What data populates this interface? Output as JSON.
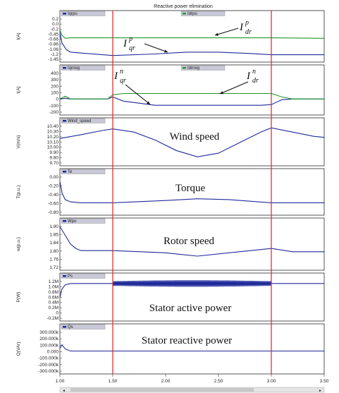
{
  "title": "Reactive power elimination",
  "scrollbar_arrow_left": "◄",
  "scrollbar_arrow_right": "►",
  "colors": {
    "blue": "#1f2a9a",
    "green": "#1d9a2e",
    "red": "#e23030",
    "frame": "#2a2a2a",
    "legendbg": "#c8c8d8"
  },
  "x_ticks": [
    "1.00",
    "1.50",
    "2.00",
    "2.50",
    "3.00",
    "3.50"
  ],
  "red_markers_x": [
    1.5,
    3.0
  ],
  "chart_data": [
    {
      "type": "line",
      "legend": [
        "Iqrpu",
        "Idrpu"
      ],
      "ylabel": "I(A)",
      "yticks": [
        "0.2",
        "0.0",
        "-0.2",
        "-0.45",
        "-0.66",
        "-0.86",
        "-1.06",
        "-1.2",
        "-1.45"
      ],
      "ylim": [
        -1.45,
        0.2
      ],
      "xlim": [
        1.0,
        3.5
      ],
      "series": [
        {
          "name": "Iqrpu",
          "color": "blue",
          "x": [
            1.0,
            1.02,
            1.06,
            1.1,
            1.5,
            1.9,
            2.2,
            2.5,
            2.8,
            3.0,
            3.1,
            3.5
          ],
          "y": [
            -0.4,
            -0.8,
            -1.05,
            -1.15,
            -1.28,
            -1.22,
            -1.15,
            -1.15,
            -1.2,
            -1.25,
            -1.25,
            -1.25
          ]
        },
        {
          "name": "Idrpu",
          "color": "green",
          "x": [
            1.0,
            1.02,
            1.05,
            1.1,
            1.5,
            2.0,
            2.5,
            3.0,
            3.5
          ],
          "y": [
            -0.3,
            -0.5,
            -0.62,
            -0.6,
            -0.6,
            -0.6,
            -0.6,
            -0.6,
            -0.62
          ]
        }
      ],
      "annotations": [
        {
          "base": "I",
          "sup": "p",
          "sub": "dr"
        },
        {
          "base": "I",
          "sup": "p",
          "sub": "qr"
        }
      ]
    },
    {
      "type": "line",
      "legend": [
        "Iqrneg",
        "Idrneg"
      ],
      "ylabel": "I(A)",
      "yticks": [
        "400",
        "300",
        "200",
        "100",
        "0",
        "-100",
        "-200"
      ],
      "ylim": [
        -200,
        400
      ],
      "xlim": [
        1.0,
        3.5
      ],
      "series": [
        {
          "name": "Iqrneg",
          "color": "blue",
          "x": [
            1.0,
            1.05,
            1.1,
            1.45,
            1.5,
            1.6,
            1.9,
            2.5,
            2.9,
            3.0,
            3.1,
            3.2,
            3.5
          ],
          "y": [
            0,
            10,
            0,
            0,
            30,
            -30,
            -90,
            -90,
            -90,
            -80,
            -10,
            0,
            0
          ]
        },
        {
          "name": "Idrneg",
          "color": "green",
          "x": [
            1.0,
            1.05,
            1.1,
            1.45,
            1.5,
            1.6,
            2.5,
            3.0,
            3.1,
            3.2,
            3.5
          ],
          "y": [
            0,
            40,
            0,
            0,
            60,
            80,
            80,
            80,
            30,
            0,
            0
          ]
        }
      ],
      "annotations": [
        {
          "base": "I",
          "sup": "n",
          "sub": "qr"
        },
        {
          "base": "I",
          "sup": "n",
          "sub": "dr"
        }
      ]
    },
    {
      "type": "line",
      "legend": [
        "Wind_speed"
      ],
      "ylabel": "V(m/s)",
      "label": "Wind speed",
      "yticks": [
        "10.40",
        "10.30",
        "10.20",
        "10.10",
        "10.00",
        "9.90",
        "9.80",
        "9.70"
      ],
      "ylim": [
        9.7,
        10.45
      ],
      "xlim": [
        1.0,
        3.5
      ],
      "series": [
        {
          "name": "Wind_speed",
          "color": "blue",
          "x": [
            1.0,
            1.2,
            1.4,
            1.5,
            1.7,
            1.9,
            2.1,
            2.3,
            2.5,
            2.7,
            2.9,
            3.0,
            3.2,
            3.4,
            3.5
          ],
          "y": [
            10.18,
            10.25,
            10.33,
            10.36,
            10.3,
            10.15,
            9.95,
            9.83,
            9.9,
            10.1,
            10.3,
            10.38,
            10.3,
            10.22,
            10.2
          ]
        }
      ]
    },
    {
      "type": "line",
      "legend": [
        "Te"
      ],
      "ylabel": "T(p.u.)",
      "label": "Torque",
      "yticks": [
        "0.00",
        "-0.20",
        "-0.40",
        "-0.60",
        "-0.80"
      ],
      "ylim": [
        -0.8,
        0.05
      ],
      "xlim": [
        1.0,
        3.5
      ],
      "series": [
        {
          "name": "Te",
          "color": "blue",
          "x": [
            1.0,
            1.02,
            1.05,
            1.1,
            1.2,
            1.5,
            2.0,
            2.3,
            2.6,
            3.0,
            3.5
          ],
          "y": [
            -0.1,
            -0.35,
            -0.5,
            -0.55,
            -0.57,
            -0.57,
            -0.52,
            -0.48,
            -0.5,
            -0.57,
            -0.57
          ]
        }
      ]
    },
    {
      "type": "line",
      "legend": [
        "Wpu"
      ],
      "ylabel": "w(p.u.)",
      "label": "Rotor speed",
      "yticks": [
        "1.90",
        "1.85",
        "1.84",
        "1.80",
        "1.76",
        "1.72"
      ],
      "ylim": [
        1.71,
        1.91
      ],
      "xlim": [
        1.0,
        3.5
      ],
      "series": [
        {
          "name": "Wpu",
          "color": "blue",
          "x": [
            1.0,
            1.05,
            1.1,
            1.15,
            1.2,
            1.5,
            2.0,
            2.3,
            2.6,
            3.0,
            3.2,
            3.5
          ],
          "y": [
            1.9,
            1.86,
            1.82,
            1.8,
            1.79,
            1.79,
            1.78,
            1.765,
            1.78,
            1.8,
            1.785,
            1.785
          ]
        }
      ]
    },
    {
      "type": "line",
      "legend": [
        "Ps"
      ],
      "ylabel": "P(W)",
      "label": "Stator active power",
      "yticks": [
        "1.2M",
        "1.0M",
        "0.8M",
        "0.6M",
        "0.4M",
        "0.2M",
        "0",
        "-0.2M"
      ],
      "ylim": [
        -0.2,
        1.25
      ],
      "xlim": [
        1.0,
        3.5
      ],
      "series": [
        {
          "name": "Ps",
          "color": "blue",
          "x": [
            1.0,
            1.02,
            1.05,
            1.1,
            1.5,
            3.0,
            3.5
          ],
          "y": [
            0.6,
            0.9,
            1.05,
            1.1,
            1.1,
            1.1,
            1.1
          ]
        }
      ],
      "oscillation_band": {
        "x": [
          1.5,
          3.0
        ],
        "amplitude": 0.12
      }
    },
    {
      "type": "line",
      "legend": [
        "Qs"
      ],
      "ylabel": "Q(VAr)",
      "label": "Stator reactive power",
      "yticks": [
        "300.000k",
        "200.000k",
        "100.000k",
        "0.000",
        "-100.000k",
        "-200.000k",
        "-300.000k"
      ],
      "ylim": [
        -300,
        300
      ],
      "xlim": [
        1.0,
        3.5
      ],
      "series": [
        {
          "name": "Qs",
          "color": "blue",
          "x": [
            1.0,
            1.02,
            1.05,
            1.1,
            1.5,
            3.0,
            3.5
          ],
          "y": [
            40,
            90,
            30,
            0,
            0,
            0,
            0
          ]
        }
      ]
    }
  ]
}
